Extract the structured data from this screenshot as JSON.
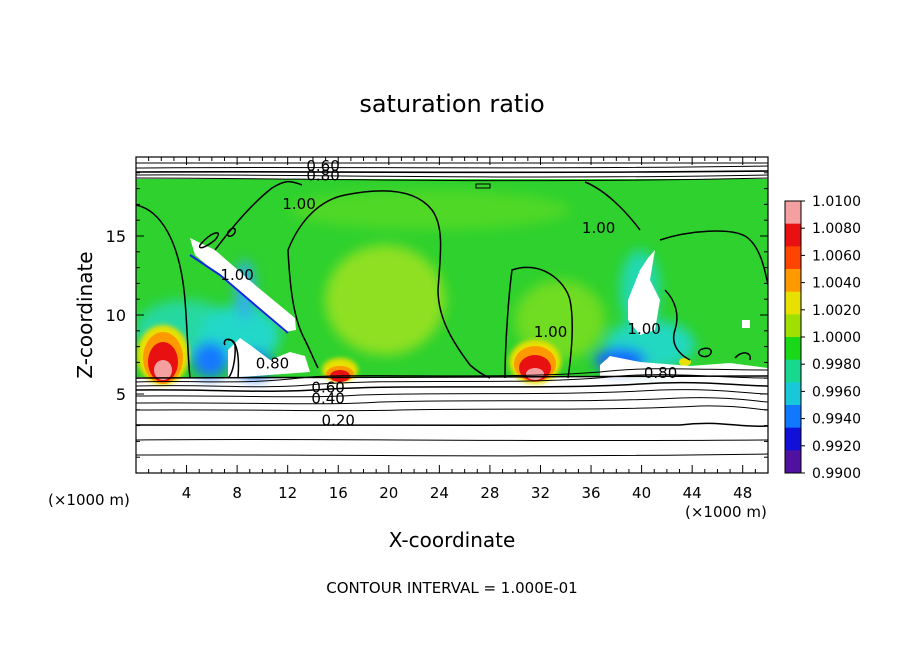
{
  "chart_data": {
    "type": "heatmap",
    "title": "saturation ratio",
    "xlabel": "X-coordinate",
    "ylabel": "Z-coordinate",
    "x_unit_left": "(×1000 m)",
    "x_unit_right": "(×1000 m)",
    "xlim": [
      0,
      50
    ],
    "ylim": [
      0,
      20
    ],
    "x_ticks": [
      4,
      8,
      12,
      16,
      20,
      24,
      28,
      32,
      36,
      40,
      44,
      48
    ],
    "y_ticks": [
      5,
      10,
      15
    ],
    "colorbar_levels": [
      "1.0100",
      "1.0080",
      "1.0060",
      "1.0040",
      "1.0020",
      "1.0000",
      "0.9980",
      "0.9960",
      "0.9940",
      "0.9920",
      "0.9900"
    ],
    "colorbar_colors": [
      "#f5a0a0",
      "#e81010",
      "#ff4400",
      "#ff9900",
      "#e8e000",
      "#a0e000",
      "#18d818",
      "#18d890",
      "#18c8d8",
      "#1078ff",
      "#1010d8",
      "#5010a0"
    ],
    "contour_labels": [
      {
        "text": "0.60",
        "x": 14.8,
        "z": 19.1
      },
      {
        "text": "0.80",
        "x": 14.8,
        "z": 18.5
      },
      {
        "text": "1.00",
        "x": 12.9,
        "z": 16.7
      },
      {
        "text": "1.00",
        "x": 8.0,
        "z": 12.2
      },
      {
        "text": "1.00",
        "x": 36.6,
        "z": 15.2
      },
      {
        "text": "1.00",
        "x": 32.8,
        "z": 8.6
      },
      {
        "text": "1.00",
        "x": 40.2,
        "z": 8.8
      },
      {
        "text": "0.80",
        "x": 10.8,
        "z": 6.6
      },
      {
        "text": "0.60",
        "x": 15.2,
        "z": 5.1
      },
      {
        "text": "0.40",
        "x": 15.2,
        "z": 4.4
      },
      {
        "text": "0.20",
        "x": 16.0,
        "z": 3.0
      },
      {
        "text": "0.80",
        "x": 41.5,
        "z": 6.0
      }
    ],
    "footer": "CONTOUR INTERVAL = 1.000E-01"
  }
}
